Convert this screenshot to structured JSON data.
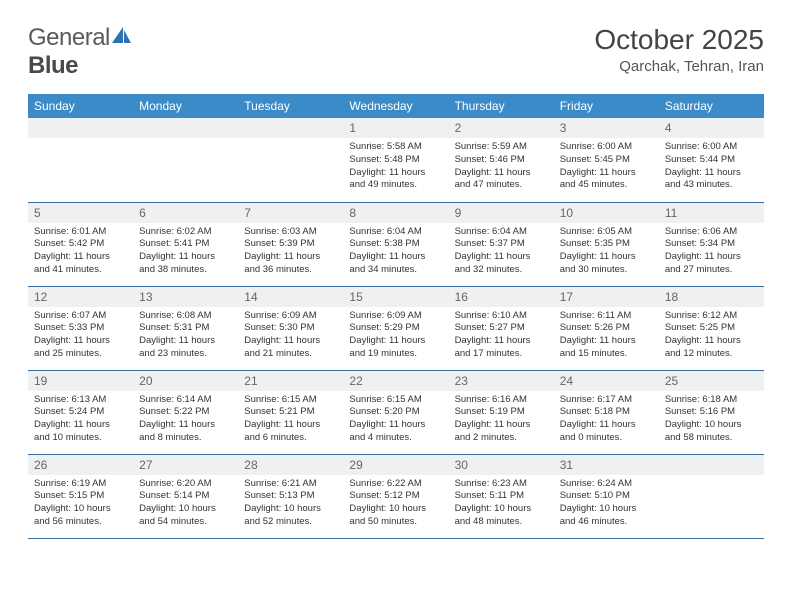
{
  "logo": {
    "part1": "General",
    "part2": "Blue"
  },
  "title": "October 2025",
  "location": "Qarchak, Tehran, Iran",
  "colors": {
    "header_bg": "#3b8bc9",
    "header_text": "#ffffff",
    "daynum_bg": "#eef0f2",
    "row_divider": "#3b6fa0",
    "logo_accent": "#2e72b5"
  },
  "dayNames": [
    "Sunday",
    "Monday",
    "Tuesday",
    "Wednesday",
    "Thursday",
    "Friday",
    "Saturday"
  ],
  "weeks": [
    [
      {
        "n": "",
        "lines": []
      },
      {
        "n": "",
        "lines": []
      },
      {
        "n": "",
        "lines": []
      },
      {
        "n": "1",
        "lines": [
          "Sunrise: 5:58 AM",
          "Sunset: 5:48 PM",
          "Daylight: 11 hours",
          "and 49 minutes."
        ]
      },
      {
        "n": "2",
        "lines": [
          "Sunrise: 5:59 AM",
          "Sunset: 5:46 PM",
          "Daylight: 11 hours",
          "and 47 minutes."
        ]
      },
      {
        "n": "3",
        "lines": [
          "Sunrise: 6:00 AM",
          "Sunset: 5:45 PM",
          "Daylight: 11 hours",
          "and 45 minutes."
        ]
      },
      {
        "n": "4",
        "lines": [
          "Sunrise: 6:00 AM",
          "Sunset: 5:44 PM",
          "Daylight: 11 hours",
          "and 43 minutes."
        ]
      }
    ],
    [
      {
        "n": "5",
        "lines": [
          "Sunrise: 6:01 AM",
          "Sunset: 5:42 PM",
          "Daylight: 11 hours",
          "and 41 minutes."
        ]
      },
      {
        "n": "6",
        "lines": [
          "Sunrise: 6:02 AM",
          "Sunset: 5:41 PM",
          "Daylight: 11 hours",
          "and 38 minutes."
        ]
      },
      {
        "n": "7",
        "lines": [
          "Sunrise: 6:03 AM",
          "Sunset: 5:39 PM",
          "Daylight: 11 hours",
          "and 36 minutes."
        ]
      },
      {
        "n": "8",
        "lines": [
          "Sunrise: 6:04 AM",
          "Sunset: 5:38 PM",
          "Daylight: 11 hours",
          "and 34 minutes."
        ]
      },
      {
        "n": "9",
        "lines": [
          "Sunrise: 6:04 AM",
          "Sunset: 5:37 PM",
          "Daylight: 11 hours",
          "and 32 minutes."
        ]
      },
      {
        "n": "10",
        "lines": [
          "Sunrise: 6:05 AM",
          "Sunset: 5:35 PM",
          "Daylight: 11 hours",
          "and 30 minutes."
        ]
      },
      {
        "n": "11",
        "lines": [
          "Sunrise: 6:06 AM",
          "Sunset: 5:34 PM",
          "Daylight: 11 hours",
          "and 27 minutes."
        ]
      }
    ],
    [
      {
        "n": "12",
        "lines": [
          "Sunrise: 6:07 AM",
          "Sunset: 5:33 PM",
          "Daylight: 11 hours",
          "and 25 minutes."
        ]
      },
      {
        "n": "13",
        "lines": [
          "Sunrise: 6:08 AM",
          "Sunset: 5:31 PM",
          "Daylight: 11 hours",
          "and 23 minutes."
        ]
      },
      {
        "n": "14",
        "lines": [
          "Sunrise: 6:09 AM",
          "Sunset: 5:30 PM",
          "Daylight: 11 hours",
          "and 21 minutes."
        ]
      },
      {
        "n": "15",
        "lines": [
          "Sunrise: 6:09 AM",
          "Sunset: 5:29 PM",
          "Daylight: 11 hours",
          "and 19 minutes."
        ]
      },
      {
        "n": "16",
        "lines": [
          "Sunrise: 6:10 AM",
          "Sunset: 5:27 PM",
          "Daylight: 11 hours",
          "and 17 minutes."
        ]
      },
      {
        "n": "17",
        "lines": [
          "Sunrise: 6:11 AM",
          "Sunset: 5:26 PM",
          "Daylight: 11 hours",
          "and 15 minutes."
        ]
      },
      {
        "n": "18",
        "lines": [
          "Sunrise: 6:12 AM",
          "Sunset: 5:25 PM",
          "Daylight: 11 hours",
          "and 12 minutes."
        ]
      }
    ],
    [
      {
        "n": "19",
        "lines": [
          "Sunrise: 6:13 AM",
          "Sunset: 5:24 PM",
          "Daylight: 11 hours",
          "and 10 minutes."
        ]
      },
      {
        "n": "20",
        "lines": [
          "Sunrise: 6:14 AM",
          "Sunset: 5:22 PM",
          "Daylight: 11 hours",
          "and 8 minutes."
        ]
      },
      {
        "n": "21",
        "lines": [
          "Sunrise: 6:15 AM",
          "Sunset: 5:21 PM",
          "Daylight: 11 hours",
          "and 6 minutes."
        ]
      },
      {
        "n": "22",
        "lines": [
          "Sunrise: 6:15 AM",
          "Sunset: 5:20 PM",
          "Daylight: 11 hours",
          "and 4 minutes."
        ]
      },
      {
        "n": "23",
        "lines": [
          "Sunrise: 6:16 AM",
          "Sunset: 5:19 PM",
          "Daylight: 11 hours",
          "and 2 minutes."
        ]
      },
      {
        "n": "24",
        "lines": [
          "Sunrise: 6:17 AM",
          "Sunset: 5:18 PM",
          "Daylight: 11 hours",
          "and 0 minutes."
        ]
      },
      {
        "n": "25",
        "lines": [
          "Sunrise: 6:18 AM",
          "Sunset: 5:16 PM",
          "Daylight: 10 hours",
          "and 58 minutes."
        ]
      }
    ],
    [
      {
        "n": "26",
        "lines": [
          "Sunrise: 6:19 AM",
          "Sunset: 5:15 PM",
          "Daylight: 10 hours",
          "and 56 minutes."
        ]
      },
      {
        "n": "27",
        "lines": [
          "Sunrise: 6:20 AM",
          "Sunset: 5:14 PM",
          "Daylight: 10 hours",
          "and 54 minutes."
        ]
      },
      {
        "n": "28",
        "lines": [
          "Sunrise: 6:21 AM",
          "Sunset: 5:13 PM",
          "Daylight: 10 hours",
          "and 52 minutes."
        ]
      },
      {
        "n": "29",
        "lines": [
          "Sunrise: 6:22 AM",
          "Sunset: 5:12 PM",
          "Daylight: 10 hours",
          "and 50 minutes."
        ]
      },
      {
        "n": "30",
        "lines": [
          "Sunrise: 6:23 AM",
          "Sunset: 5:11 PM",
          "Daylight: 10 hours",
          "and 48 minutes."
        ]
      },
      {
        "n": "31",
        "lines": [
          "Sunrise: 6:24 AM",
          "Sunset: 5:10 PM",
          "Daylight: 10 hours",
          "and 46 minutes."
        ]
      },
      {
        "n": "",
        "lines": []
      }
    ]
  ]
}
